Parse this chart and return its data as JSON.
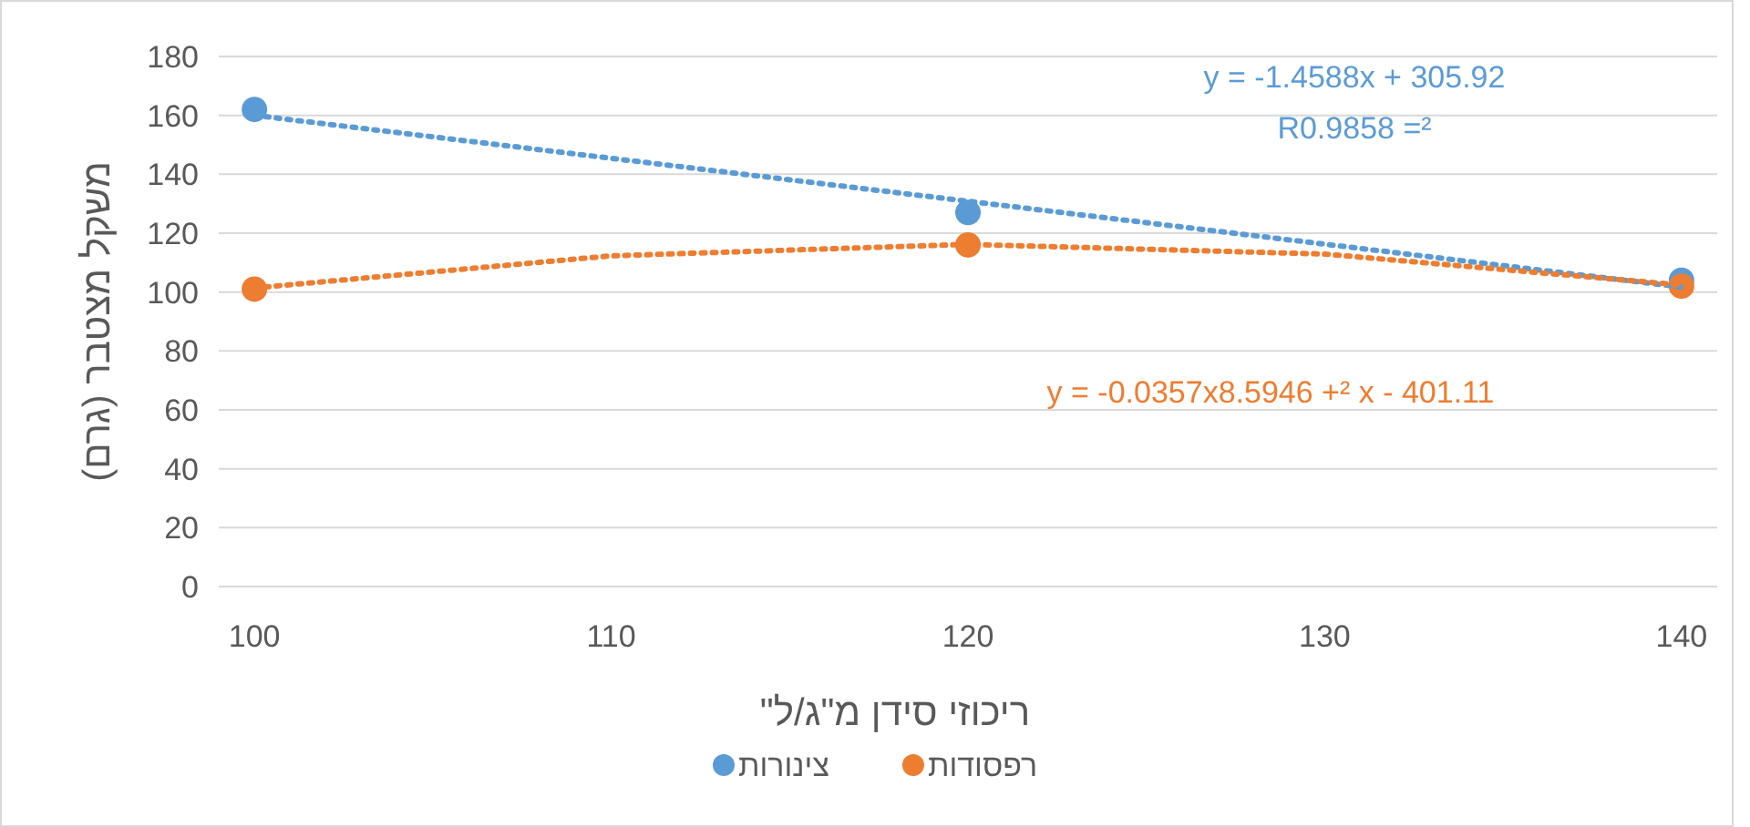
{
  "chart_data": {
    "type": "scatter",
    "xlabel": "ריכוזי סידן מ\"ג/ל\"",
    "ylabel": "משקל מצטבר (גרם)",
    "xlim": [
      99,
      141
    ],
    "xticks": [
      100,
      110,
      120,
      130,
      140
    ],
    "ylim": [
      0,
      180
    ],
    "yticks": [
      0,
      20,
      40,
      60,
      80,
      100,
      120,
      140,
      160,
      180
    ],
    "grid": "y",
    "legend": "bottom",
    "series": [
      {
        "name": "צינורות",
        "marker": "circle",
        "color": "#5b9bd5",
        "x": [
          100,
          120,
          140
        ],
        "values": [
          162,
          127,
          104
        ]
      },
      {
        "name": "רפסודות",
        "marker": "circle",
        "color": "#ed7d31",
        "x": [
          100,
          120,
          140
        ],
        "values": [
          101,
          116,
          102
        ]
      },
      {
        "type": "line",
        "marker": "none",
        "line_style": "dotted",
        "color": "#5b9bd5",
        "x": [
          100,
          140
        ],
        "values": [
          160.0,
          101.7
        ]
      },
      {
        "type": "line",
        "marker": "none",
        "line_style": "dotted",
        "color": "#ed7d31",
        "x": [
          100,
          110,
          120,
          130,
          140
        ],
        "values": [
          101.4,
          112.3,
          116.2,
          112.9,
          102.4
        ]
      }
    ],
    "annotations": [
      "y = -1.4588x + 305.92",
      "R0.9858 =²",
      "y = -0.0357x8.5946 +² x - 401.11"
    ]
  }
}
